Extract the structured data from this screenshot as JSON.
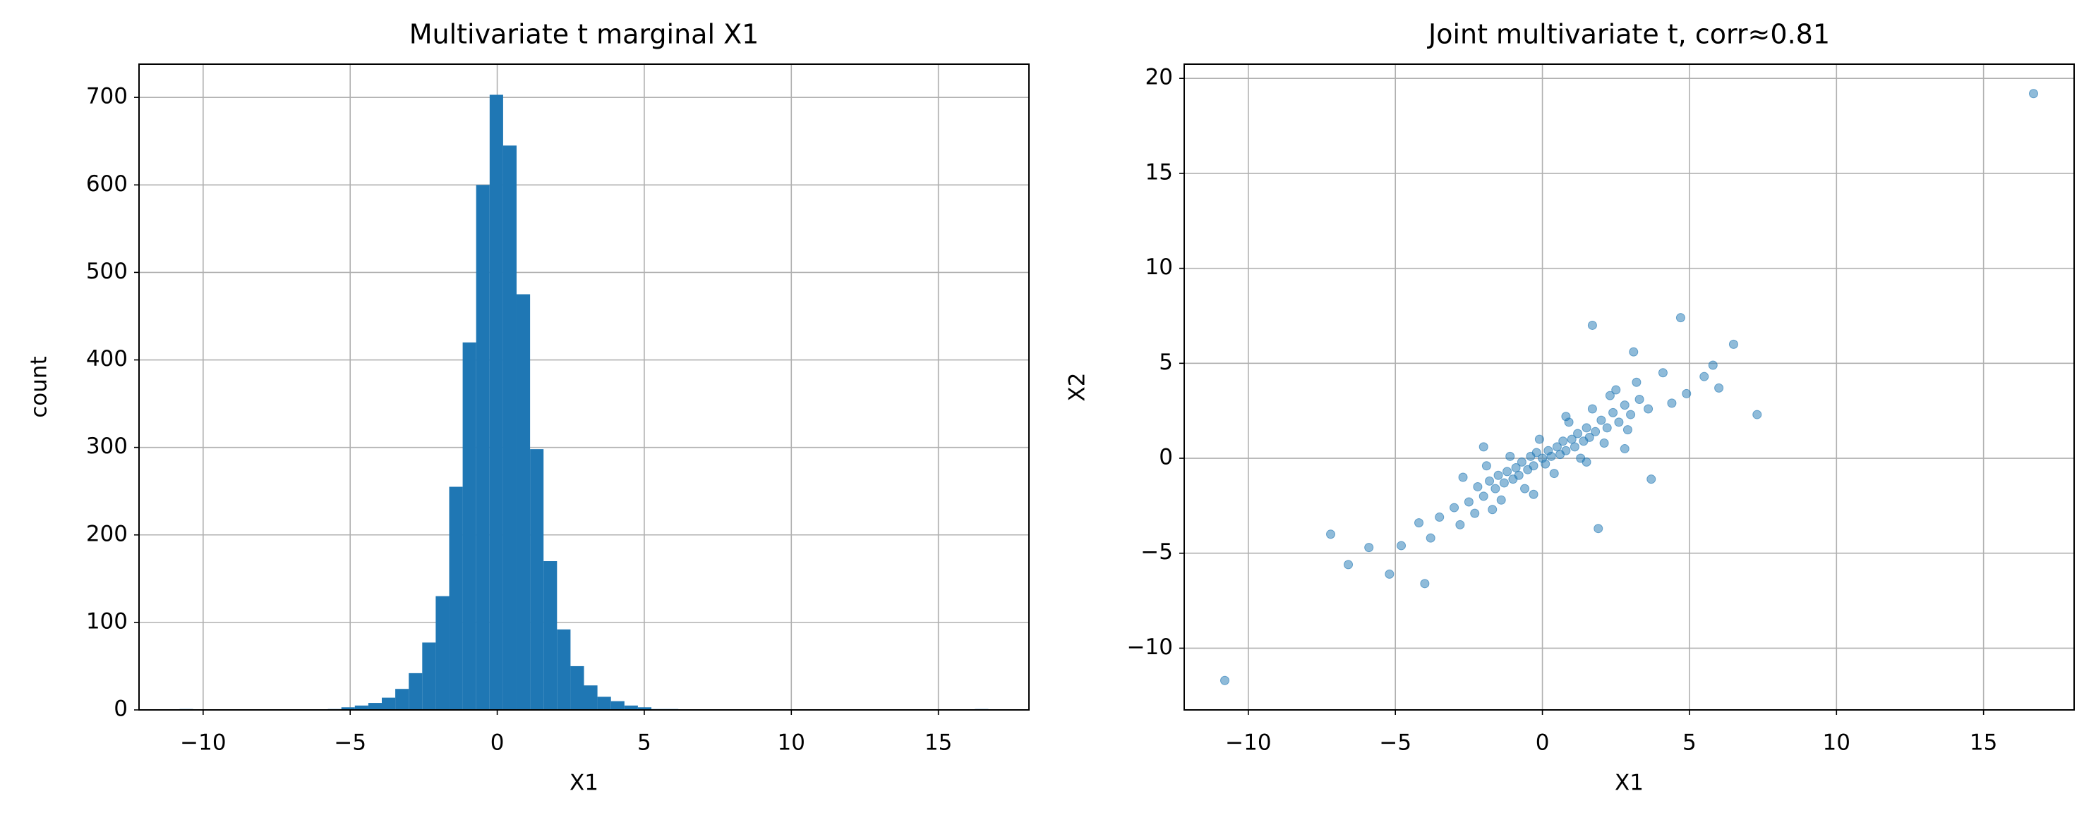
{
  "chart_data": [
    {
      "type": "histogram",
      "title": "Multivariate t marginal X1",
      "xlabel": "X1",
      "ylabel": "count",
      "color": "#1f77b4",
      "grid": true,
      "bins": [
        -10.8,
        -10.342,
        -9.883,
        -9.425,
        -8.967,
        -8.508,
        -8.05,
        -7.592,
        -7.133,
        -6.675,
        -6.217,
        -5.758,
        -5.3,
        -4.842,
        -4.383,
        -3.925,
        -3.467,
        -3.008,
        -2.55,
        -2.092,
        -1.633,
        -1.175,
        -0.717,
        -0.258,
        0.2,
        0.658,
        1.117,
        1.575,
        2.033,
        2.492,
        2.95,
        3.408,
        3.867,
        4.325,
        4.783,
        5.242,
        5.7,
        6.158,
        6.617,
        7.075,
        7.533,
        7.992,
        8.45,
        8.908,
        9.367,
        9.825,
        10.283,
        10.742,
        11.2,
        11.658,
        12.117,
        12.575,
        13.033,
        13.492,
        13.95,
        14.408,
        14.867,
        15.325,
        15.783,
        16.242,
        16.7
      ],
      "counts": [
        1,
        0,
        0,
        0,
        0,
        0,
        0,
        0,
        0,
        0,
        0,
        1,
        3,
        5,
        8,
        14,
        24,
        42,
        77,
        130,
        255,
        420,
        600,
        703,
        645,
        475,
        298,
        170,
        92,
        50,
        28,
        15,
        10,
        5,
        3,
        1,
        1,
        0,
        0,
        0,
        0,
        0,
        0,
        0,
        0,
        0,
        0,
        0,
        0,
        0,
        0,
        0,
        0,
        0,
        0,
        0,
        0,
        0,
        0,
        1
      ],
      "xlim": [
        -12.18,
        18.08
      ],
      "xticks": [
        {
          "value": -10,
          "label": "−10"
        },
        {
          "value": -5,
          "label": "−5"
        },
        0,
        5,
        10,
        15
      ],
      "ylim": [
        0,
        738
      ],
      "yticks": [
        0,
        100,
        200,
        300,
        400,
        500,
        600,
        700
      ]
    },
    {
      "type": "scatter",
      "title": "Joint multivariate t, corr≈0.81",
      "xlabel": "X1",
      "ylabel": "X2",
      "color": "#1f77b4",
      "grid": true,
      "x": [
        -10.8,
        16.7,
        7.3,
        6.5,
        4.7,
        1.7,
        -7.2,
        -6.6,
        -5.2,
        3.1,
        5.5,
        5.8,
        6.0,
        3.7,
        1.9,
        -4.0,
        -5.9,
        -3,
        -2.5,
        -2.2,
        -2,
        -1.8,
        -1.6,
        -1.5,
        -1.3,
        -1.2,
        -1,
        -0.9,
        -0.8,
        -0.7,
        -0.5,
        -0.4,
        -0.3,
        -0.2,
        0,
        0.1,
        0.2,
        0.3,
        0.5,
        0.6,
        0.7,
        0.8,
        1,
        1.1,
        1.2,
        1.4,
        1.5,
        1.6,
        1.8,
        2,
        2.2,
        2.4,
        2.6,
        2.8,
        3,
        3.3,
        3.6,
        -3.5,
        -2.8,
        -2.3,
        -1.9,
        -1.4,
        -1.1,
        -0.6,
        -0.1,
        0.4,
        0.9,
        1.3,
        1.7,
        2.1,
        2.5,
        2.9,
        3.2,
        -4.2,
        -3.8,
        4.1,
        4.4,
        -4.8,
        4.9,
        -2.7,
        2.8,
        -1.7,
        0.8,
        1.5,
        -0.3,
        -2.0,
        2.3
      ],
      "y": [
        -11.7,
        19.2,
        2.3,
        6.0,
        7.4,
        7.0,
        -4.0,
        -5.6,
        -6.1,
        5.6,
        4.3,
        4.9,
        3.7,
        -1.1,
        -3.7,
        -6.6,
        -4.7,
        -2.6,
        -2.3,
        -1.5,
        -2.0,
        -1.2,
        -1.6,
        -0.9,
        -1.3,
        -0.7,
        -1.1,
        -0.5,
        -0.9,
        -0.2,
        -0.6,
        0.1,
        -0.4,
        0.3,
        0.0,
        -0.3,
        0.4,
        0.1,
        0.6,
        0.2,
        0.9,
        0.4,
        1.0,
        0.6,
        1.3,
        0.9,
        1.6,
        1.1,
        1.4,
        2.0,
        1.6,
        2.4,
        1.9,
        2.8,
        2.3,
        3.1,
        2.6,
        -3.1,
        -3.5,
        -2.9,
        -0.4,
        -2.2,
        0.1,
        -1.6,
        1.0,
        -0.8,
        1.9,
        0.0,
        2.6,
        0.8,
        3.6,
        1.5,
        4.0,
        -3.4,
        -4.2,
        4.5,
        2.9,
        -4.6,
        3.4,
        -1.0,
        0.5,
        -2.7,
        2.2,
        -0.2,
        -1.9,
        0.6,
        3.3
      ],
      "xlim": [
        -12.18,
        18.08
      ],
      "xticks": [
        {
          "value": -10,
          "label": "−10"
        },
        {
          "value": -5,
          "label": "−5"
        },
        0,
        5,
        10,
        15
      ],
      "ylim": [
        -13.25,
        20.75
      ],
      "yticks": [
        {
          "value": -10,
          "label": "−10"
        },
        {
          "value": -5,
          "label": "−5"
        },
        0,
        5,
        10,
        15,
        20
      ]
    }
  ]
}
